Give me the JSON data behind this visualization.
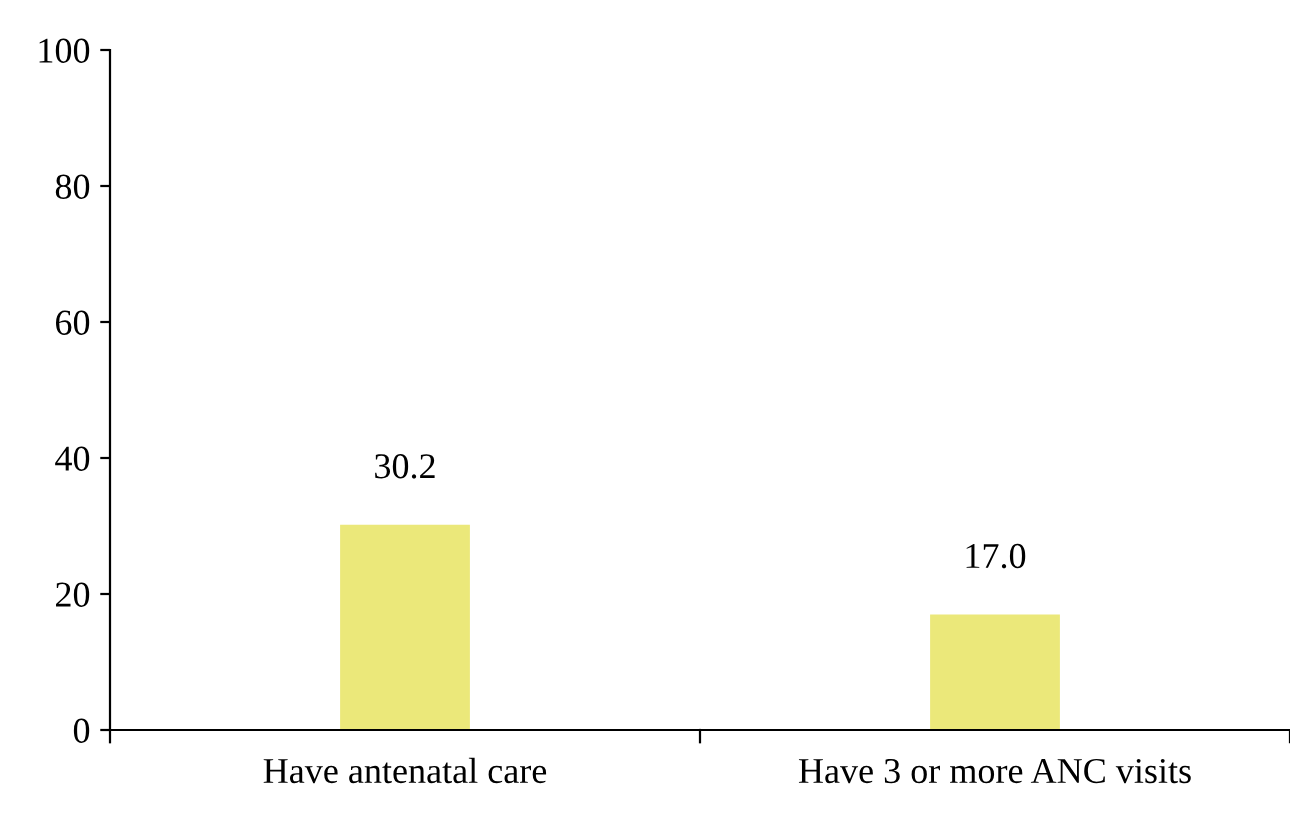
{
  "chart_data": {
    "type": "bar",
    "categories": [
      "Have antenatal care",
      "Have 3 or more ANC visits"
    ],
    "values": [
      30.2,
      17.0
    ],
    "value_labels": [
      "30.2",
      "17.0"
    ],
    "color": "#ebe87a",
    "ylim": [
      0,
      100
    ],
    "yticks": [
      0,
      20,
      40,
      60,
      80,
      100
    ],
    "grid": false,
    "legend": false
  }
}
